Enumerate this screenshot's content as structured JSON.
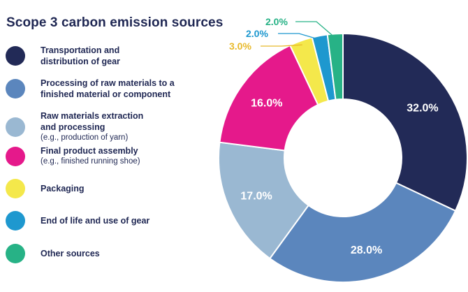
{
  "title": "Scope 3 carbon emission sources",
  "chart_data": {
    "type": "pie",
    "donut": true,
    "title": "Scope 3 carbon emission sources",
    "legend_position": "left",
    "slices": [
      {
        "label": "Transportation and\ndistribution of gear",
        "note": "",
        "value": 32.0,
        "value_label": "32.0%",
        "color": "#222a57"
      },
      {
        "label": "Processing of raw materials to a\nfinished material or component",
        "note": "",
        "value": 28.0,
        "value_label": "28.0%",
        "color": "#5b86bd"
      },
      {
        "label": "Raw materials extraction\nand processing",
        "note": "(e.g., production of yarn)",
        "value": 17.0,
        "value_label": "17.0%",
        "color": "#9ab8d2"
      },
      {
        "label": "Final product assembly",
        "note": "(e.g., finished running shoe)",
        "value": 16.0,
        "value_label": "16.0%",
        "color": "#e5198b"
      },
      {
        "label": "Packaging",
        "note": "",
        "value": 3.0,
        "value_label": "3.0%",
        "color": "#f4e84b"
      },
      {
        "label": "End of life and use of gear",
        "note": "",
        "value": 2.0,
        "value_label": "2.0%",
        "color": "#1e98cf"
      },
      {
        "label": "Other sources",
        "note": "",
        "value": 2.0,
        "value_label": "2.0%",
        "color": "#27b286"
      }
    ],
    "callout_colors": {
      "Packaging": "#e8b92a",
      "End of life and use of gear": "#1e98cf",
      "Other sources": "#27b286"
    }
  }
}
